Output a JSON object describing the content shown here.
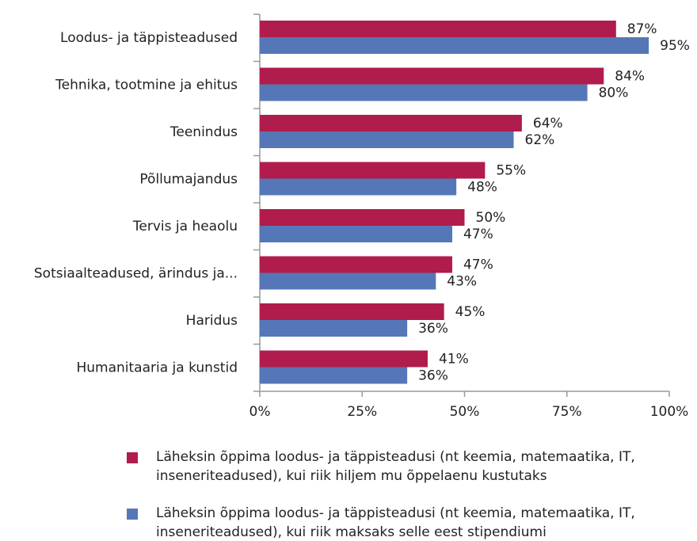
{
  "chart_data": {
    "type": "hbar",
    "categories": [
      "Loodus- ja täppisteadused",
      "Tehnika, tootmine ja ehitus",
      "Teenindus",
      "Põllumajandus",
      "Tervis ja heaolu",
      "Sotsiaalteadused, ärindus ja...",
      "Haridus",
      "Humanitaaria ja kunstid"
    ],
    "series": [
      {
        "name": "Läheksin õppima loodus- ja täppisteadusi (nt keemia, matemaatika, IT, inseneriteadused), kui riik hiljem mu õppelaenu kustutaks",
        "color": "#b01c4b",
        "values": [
          87,
          84,
          64,
          55,
          50,
          47,
          45,
          41
        ],
        "value_labels": [
          "87%",
          "84%",
          "64%",
          "55%",
          "50%",
          "47%",
          "45%",
          "41%"
        ]
      },
      {
        "name": "Läheksin õppima loodus- ja täppisteadusi (nt keemia, matemaatika, IT, inseneriteadused), kui riik maksaks selle eest stipendiumi",
        "color": "#5577b8",
        "values": [
          95,
          80,
          62,
          48,
          47,
          43,
          36,
          36
        ],
        "value_labels": [
          "95%",
          "80%",
          "62%",
          "48%",
          "47%",
          "43%",
          "36%",
          "36%"
        ]
      }
    ],
    "xlim": [
      0,
      100
    ],
    "xticks": [
      {
        "value": 0,
        "label": "0%"
      },
      {
        "value": 25,
        "label": "25%"
      },
      {
        "value": 50,
        "label": "50%"
      },
      {
        "value": 75,
        "label": "75%"
      },
      {
        "value": 100,
        "label": "100%"
      }
    ]
  }
}
